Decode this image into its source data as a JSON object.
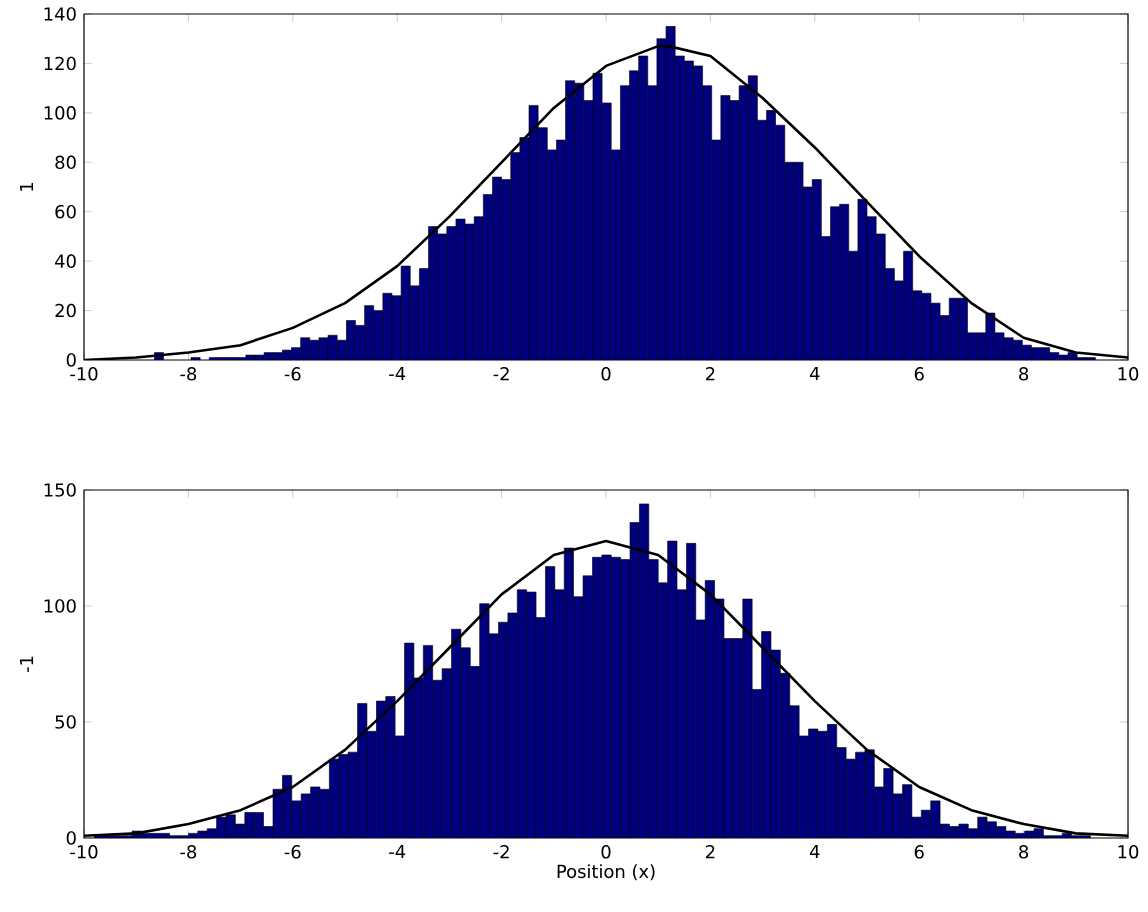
{
  "chart_data": [
    {
      "type": "histogram",
      "ylabel": "1",
      "color": "#00007f",
      "xlim": [
        -10,
        10
      ],
      "ylim": [
        0,
        140
      ],
      "xticks": [
        -10,
        -8,
        -6,
        -4,
        -2,
        0,
        2,
        4,
        6,
        8,
        10
      ],
      "yticks": [
        0,
        20,
        40,
        60,
        80,
        100,
        120,
        140
      ],
      "bins": [
        -8.65,
        -8.475,
        -8.3,
        -8.125,
        -7.95,
        -7.775,
        -7.6,
        -7.425,
        -7.25,
        -7.075,
        -6.9,
        -6.725,
        -6.55,
        -6.375,
        -6.2,
        -6.025,
        -5.85,
        -5.675,
        -5.5,
        -5.325,
        -5.15,
        -4.975,
        -4.8,
        -4.625,
        -4.45,
        -4.275,
        -4.1,
        -3.925,
        -3.75,
        -3.575,
        -3.4,
        -3.225,
        -3.05,
        -2.875,
        -2.7,
        -2.525,
        -2.35,
        -2.175,
        -2.0,
        -1.825,
        -1.65,
        -1.475,
        -1.3,
        -1.125,
        -0.95,
        -0.775,
        -0.6,
        -0.425,
        -0.25,
        -0.075,
        0.1,
        0.275,
        0.45,
        0.625,
        0.8,
        0.975,
        1.15,
        1.325,
        1.5,
        1.675,
        1.85,
        2.025,
        2.2,
        2.375,
        2.55,
        2.725,
        2.9,
        3.075,
        3.25,
        3.425,
        3.6,
        3.775,
        3.95,
        4.125,
        4.3,
        4.475,
        4.65,
        4.825,
        5.0,
        5.175,
        5.35,
        5.525,
        5.7,
        5.875,
        6.05,
        6.225,
        6.4,
        6.575,
        6.75,
        6.925,
        7.1,
        7.275,
        7.45,
        7.625,
        7.8,
        7.975,
        8.15,
        8.325,
        8.5,
        8.675,
        8.85,
        9.025,
        9.2,
        9.375
      ],
      "values": [
        3,
        0,
        0,
        0,
        1,
        0,
        1,
        1,
        1,
        1,
        2,
        2,
        3,
        3,
        4,
        5,
        9,
        8,
        9,
        10,
        8,
        16,
        14,
        22,
        20,
        27,
        26,
        38,
        30,
        37,
        54,
        51,
        54,
        57,
        55,
        58,
        67,
        74,
        73,
        84,
        90,
        103,
        94,
        85,
        89,
        113,
        112,
        105,
        116,
        104,
        85,
        111,
        117,
        123,
        111,
        130,
        135,
        123,
        121,
        119,
        111,
        89,
        107,
        105,
        111,
        115,
        97,
        101,
        95,
        80,
        80,
        70,
        73,
        50,
        62,
        63,
        44,
        65,
        58,
        51,
        37,
        32,
        44,
        28,
        27,
        23,
        18,
        25,
        25,
        11,
        11,
        19,
        11,
        9,
        8,
        6,
        5,
        5,
        3,
        2,
        3,
        1,
        1
      ],
      "series": [
        {
          "type": "line",
          "color": "#000000",
          "x": [
            -10,
            -9,
            -8,
            -7,
            -6,
            -5,
            -4,
            -3,
            -2,
            -1,
            0,
            1,
            1.2,
            2,
            3,
            4,
            5,
            6,
            7,
            8,
            9,
            10
          ],
          "values": [
            0,
            1,
            3,
            6,
            13,
            23,
            38,
            58,
            80,
            102,
            119,
            127,
            127,
            123,
            106,
            86,
            64,
            42,
            23,
            9,
            3,
            1
          ]
        }
      ]
    },
    {
      "type": "histogram",
      "xlabel": "Position (x)",
      "ylabel": "-1",
      "color": "#00007f",
      "xlim": [
        -10,
        10
      ],
      "ylim": [
        0,
        150
      ],
      "xticks": [
        -10,
        -8,
        -6,
        -4,
        -2,
        0,
        2,
        4,
        6,
        8,
        10
      ],
      "yticks": [
        0,
        50,
        100,
        150
      ],
      "bins": [
        -9.8,
        -9.62,
        -9.44,
        -9.26,
        -9.08,
        -8.9,
        -8.72,
        -8.54,
        -8.36,
        -8.18,
        -8.0,
        -7.82,
        -7.64,
        -7.46,
        -7.28,
        -7.1,
        -6.92,
        -6.74,
        -6.56,
        -6.38,
        -6.2,
        -6.02,
        -5.84,
        -5.66,
        -5.48,
        -5.3,
        -5.12,
        -4.94,
        -4.76,
        -4.58,
        -4.4,
        -4.22,
        -4.04,
        -3.86,
        -3.68,
        -3.5,
        -3.32,
        -3.14,
        -2.96,
        -2.78,
        -2.6,
        -2.42,
        -2.24,
        -2.06,
        -1.88,
        -1.7,
        -1.52,
        -1.34,
        -1.16,
        -0.98,
        -0.8,
        -0.62,
        -0.44,
        -0.26,
        -0.08,
        0.1,
        0.28,
        0.46,
        0.64,
        0.82,
        1.0,
        1.18,
        1.36,
        1.54,
        1.72,
        1.9,
        2.08,
        2.26,
        2.44,
        2.62,
        2.8,
        2.98,
        3.16,
        3.34,
        3.52,
        3.7,
        3.88,
        4.06,
        4.24,
        4.42,
        4.6,
        4.78,
        4.96,
        5.14,
        5.32,
        5.5,
        5.68,
        5.86,
        6.04,
        6.22,
        6.4,
        6.58,
        6.76,
        6.94,
        7.12,
        7.3,
        7.48,
        7.66,
        7.84,
        8.02,
        8.2,
        8.38,
        8.56,
        8.74,
        8.92,
        9.1,
        9.28
      ],
      "values": [
        1,
        1,
        1,
        1,
        3,
        2,
        2,
        2,
        1,
        1,
        2,
        3,
        4,
        9,
        10,
        6,
        11,
        11,
        5,
        21,
        27,
        16,
        19,
        22,
        21,
        34,
        36,
        37,
        58,
        46,
        59,
        61,
        44,
        84,
        69,
        83,
        68,
        73,
        90,
        82,
        74,
        101,
        88,
        93,
        97,
        107,
        106,
        95,
        117,
        107,
        125,
        104,
        113,
        121,
        122,
        121,
        120,
        136,
        144,
        120,
        110,
        128,
        107,
        127,
        94,
        111,
        103,
        86,
        86,
        103,
        64,
        89,
        81,
        71,
        57,
        44,
        47,
        46,
        49,
        39,
        34,
        37,
        38,
        22,
        30,
        19,
        23,
        9,
        12,
        16,
        6,
        5,
        6,
        4,
        9,
        7,
        5,
        3,
        2,
        3,
        4,
        1,
        1,
        2,
        1,
        1
      ],
      "series": [
        {
          "type": "line",
          "color": "#000000",
          "x": [
            -10,
            -9,
            -8,
            -7,
            -6,
            -5,
            -4,
            -3,
            -2,
            -1,
            0,
            1,
            2,
            3,
            4,
            5,
            6,
            7,
            8,
            9,
            10
          ],
          "values": [
            1,
            2,
            6,
            12,
            22,
            38,
            59,
            82,
            105,
            122,
            128,
            122,
            105,
            82,
            59,
            38,
            22,
            12,
            6,
            2,
            1
          ]
        }
      ]
    }
  ]
}
